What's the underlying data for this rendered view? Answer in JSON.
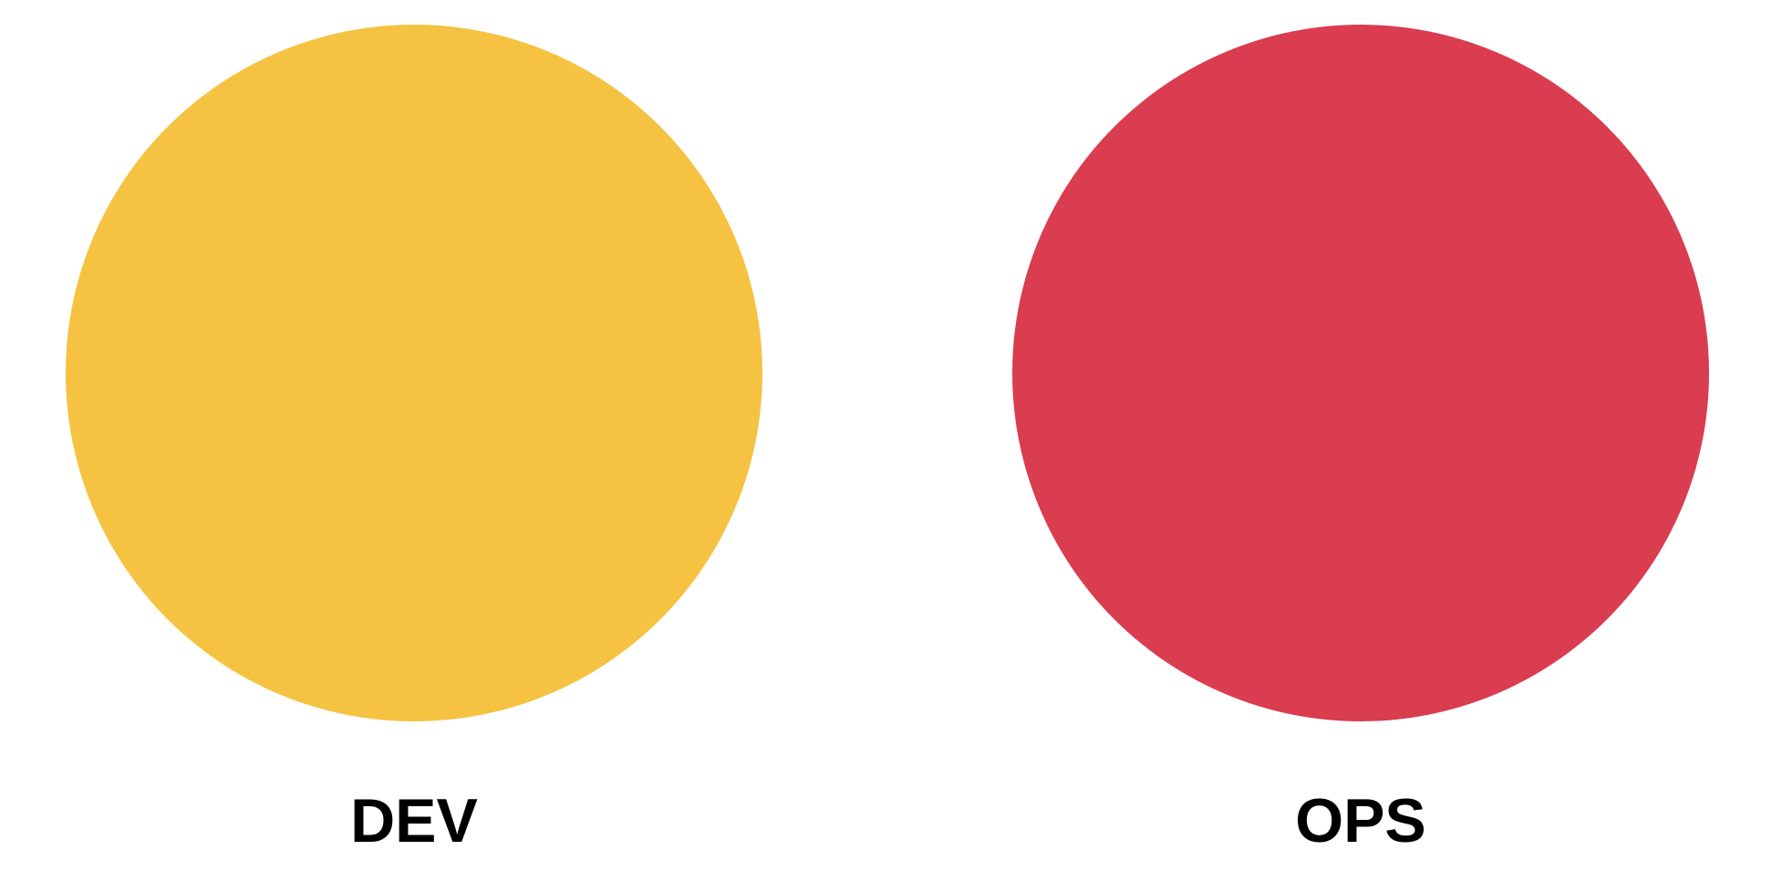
{
  "diagram": {
    "left": {
      "label": "DEV",
      "color": "#F5C242"
    },
    "right": {
      "label": "OPS",
      "color": "#DA3C50"
    }
  }
}
